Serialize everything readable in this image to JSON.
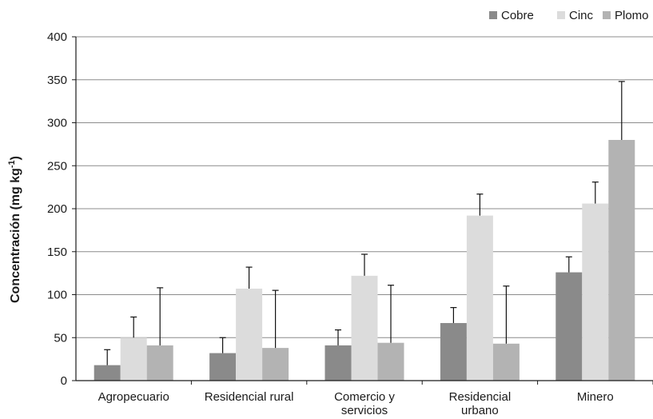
{
  "chart_data": {
    "type": "bar",
    "categories": [
      [
        "Agropecuario"
      ],
      [
        "Residencial rural"
      ],
      [
        "Comercio y",
        "servicios"
      ],
      [
        "Residencial",
        "urbano"
      ],
      [
        "Minero"
      ]
    ],
    "series": [
      {
        "name": "Cobre",
        "color": "#8a8a8a",
        "values": [
          18,
          32,
          41,
          67,
          126
        ],
        "errors": [
          18,
          18,
          18,
          18,
          18
        ]
      },
      {
        "name": "Cinc",
        "color": "#dcdcdc",
        "values": [
          50,
          107,
          122,
          192,
          206
        ],
        "errors": [
          24,
          25,
          25,
          25,
          25
        ]
      },
      {
        "name": "Plomo",
        "color": "#b3b3b3",
        "values": [
          41,
          38,
          44,
          43,
          280
        ],
        "errors": [
          67,
          67,
          67,
          67,
          68
        ]
      }
    ],
    "ylabel_main": "Concentración (mg kg",
    "ylabel_sup": "-1",
    "ylabel_end": ")",
    "ylim": [
      0,
      400
    ],
    "yticks": [
      0,
      50,
      100,
      150,
      200,
      250,
      300,
      350,
      400
    ],
    "grid": true,
    "legend_position": "top-right"
  }
}
